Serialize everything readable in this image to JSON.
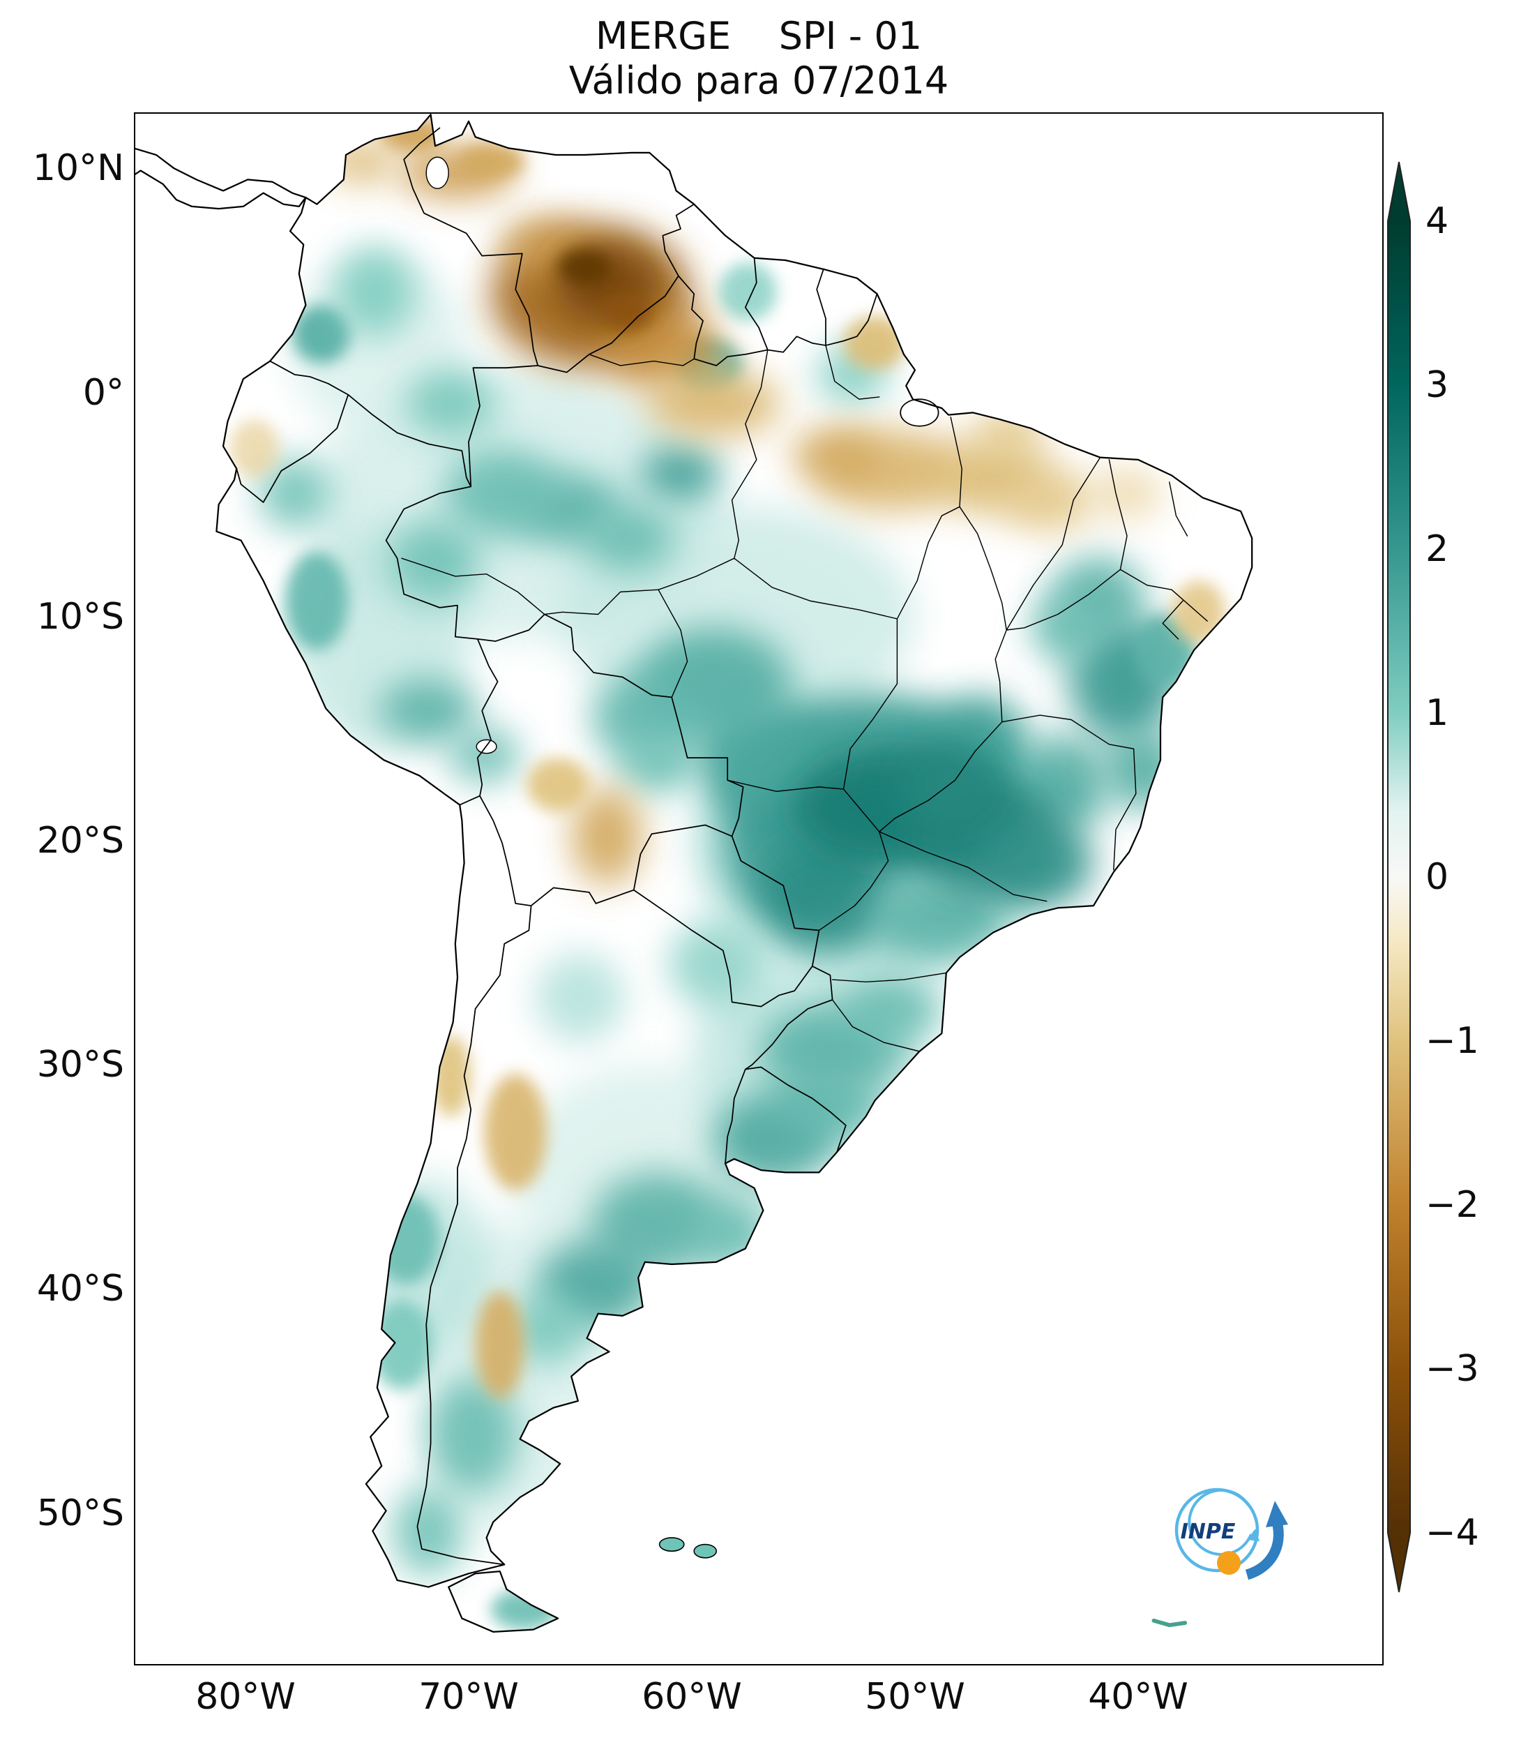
{
  "title": {
    "line1": "MERGE    SPI - 01",
    "line2": "Válido para 07/2014"
  },
  "axes": {
    "y_ticks": [
      {
        "label": "10°N",
        "lat": 10
      },
      {
        "label": "0°",
        "lat": 0
      },
      {
        "label": "10°S",
        "lat": -10
      },
      {
        "label": "20°S",
        "lat": -20
      },
      {
        "label": "30°S",
        "lat": -30
      },
      {
        "label": "40°S",
        "lat": -40
      },
      {
        "label": "50°S",
        "lat": -50
      }
    ],
    "x_ticks": [
      {
        "label": "80°W",
        "lon": -80
      },
      {
        "label": "70°W",
        "lon": -70
      },
      {
        "label": "60°W",
        "lon": -60
      },
      {
        "label": "50°W",
        "lon": -50
      },
      {
        "label": "40°W",
        "lon": -40
      }
    ]
  },
  "colorbar": {
    "ticks": [
      {
        "label": "4",
        "v": 4
      },
      {
        "label": "3",
        "v": 3
      },
      {
        "label": "2",
        "v": 2
      },
      {
        "label": "1",
        "v": 1
      },
      {
        "label": "0",
        "v": 0
      },
      {
        "label": "−1",
        "v": -1
      },
      {
        "label": "−2",
        "v": -2
      },
      {
        "label": "−3",
        "v": -3
      },
      {
        "label": "−4",
        "v": -4
      }
    ],
    "stops": [
      {
        "v": -4,
        "c": "#543005"
      },
      {
        "v": -3,
        "c": "#8c510a"
      },
      {
        "v": -2,
        "c": "#bf812d"
      },
      {
        "v": -1,
        "c": "#dfc27d"
      },
      {
        "v": -0.4,
        "c": "#f6e8c3"
      },
      {
        "v": 0,
        "c": "#f8f8f6"
      },
      {
        "v": 0.4,
        "c": "#e2f3f0"
      },
      {
        "v": 1,
        "c": "#80cdc1"
      },
      {
        "v": 2,
        "c": "#35978f"
      },
      {
        "v": 3,
        "c": "#01665e"
      },
      {
        "v": 4,
        "c": "#003c30"
      }
    ]
  },
  "logo": {
    "text": "INPE",
    "circle_color": "#58b7e6",
    "arrow_color": "#2f7fc1",
    "dot_color": "#f5a01a",
    "text_color": "#123f7a"
  },
  "chart_data": {
    "type": "heatmap",
    "title": "MERGE SPI - 01",
    "valid_for": "07/2014",
    "variable": "SPI (Standardized Precipitation Index), 1-month",
    "region": "South America",
    "projection": "plate carrée",
    "lon_range": [
      -85,
      -29
    ],
    "lat_range": [
      -56.8,
      12.5
    ],
    "value_range": [
      -4,
      4
    ],
    "colormap": "BrBG (brown = dry, teal = wet)",
    "notable_features": [
      "Strong dry anomaly (SPI ≤ −3) over southern Venezuela / upper Rio Negro / Roraima",
      "Strong wet anomaly (SPI ≥ +2) across central-southern Brazil (MT, GO, MG, MS, SP)",
      "Wet anomalies over Uruguay, southern Brazil and central-eastern Argentina",
      "Dry patches over Pará/Maranhão, western Argentina and the Bolivian Chaco",
      "Near-neutral (white) over Paraguay, NW Argentina and much of Patagonia"
    ],
    "regions_columns": [
      "lon",
      "lat",
      "rx_deg",
      "ry_deg",
      "spi"
    ],
    "regions": [
      [
        -68,
        -5,
        9,
        6,
        0.55
      ],
      [
        -58,
        -10,
        8,
        5,
        0.6
      ],
      [
        -74,
        -11,
        4,
        5,
        0.65
      ],
      [
        -62,
        -35,
        6,
        5,
        0.5
      ],
      [
        -68,
        -44,
        4,
        7,
        0.5
      ],
      [
        -72,
        -39,
        3,
        4,
        0.7
      ],
      [
        -55,
        -29.5,
        5,
        4,
        0.7
      ],
      [
        -74,
        2,
        4,
        4,
        0.5
      ],
      [
        -52,
        -20,
        8,
        6,
        0.8
      ],
      [
        -52,
        -17.5,
        7,
        4,
        1.9
      ],
      [
        -55.5,
        -20.5,
        3,
        3,
        1.9
      ],
      [
        -54,
        -22.5,
        3,
        2.5,
        2.2
      ],
      [
        -57,
        -16,
        3,
        2,
        1.7
      ],
      [
        -59,
        -13,
        3.5,
        2.5,
        1.6
      ],
      [
        -62,
        -14.5,
        2.5,
        2,
        1.4
      ],
      [
        -49,
        -23.5,
        3,
        1.8,
        1.5
      ],
      [
        -47,
        -15.5,
        2,
        2,
        1.8
      ],
      [
        -43.5,
        -17.5,
        2.2,
        2.2,
        1.6
      ],
      [
        -40.7,
        -12.8,
        2.4,
        2.8,
        2.0
      ],
      [
        -41.8,
        -9.2,
        2.1,
        1.9,
        1.5
      ],
      [
        -39.8,
        -16.8,
        1.8,
        1.8,
        1.6
      ],
      [
        -43.2,
        -10.5,
        1.6,
        1.5,
        1.3
      ],
      [
        -38.8,
        -11.5,
        1.4,
        1.6,
        1.5
      ],
      [
        -53.8,
        -29.3,
        3.2,
        2,
        1.5
      ],
      [
        -56.3,
        -33.3,
        2.8,
        2,
        1.7
      ],
      [
        -54,
        -31.8,
        2.4,
        1.6,
        1.4
      ],
      [
        -51,
        -27.5,
        2.2,
        1.6,
        1.3
      ],
      [
        -61.5,
        -37,
        3,
        2.2,
        1.5
      ],
      [
        -64.3,
        -39.8,
        2.6,
        2,
        1.7
      ],
      [
        -58.3,
        -37.5,
        1.8,
        1.5,
        1.3
      ],
      [
        -66.5,
        -41.8,
        1.6,
        1.6,
        1.1
      ],
      [
        -69.8,
        -46.5,
        2,
        2.6,
        1.3
      ],
      [
        -71.8,
        -50.8,
        1.6,
        2,
        1.2
      ],
      [
        -67.5,
        -54.3,
        1.5,
        0.9,
        1.3
      ],
      [
        -60.5,
        -3.6,
        1.8,
        1.2,
        1.9
      ],
      [
        -65.5,
        -5.2,
        2.4,
        1.6,
        1.5
      ],
      [
        -62.8,
        -6.5,
        2,
        1.5,
        1.3
      ],
      [
        -68.5,
        -4.5,
        2.6,
        2,
        1.3
      ],
      [
        -71.5,
        -7.5,
        2,
        1.8,
        1.2
      ],
      [
        -76.8,
        -9.3,
        1.4,
        2.2,
        1.4
      ],
      [
        -71.8,
        -14.2,
        2.2,
        1.4,
        1.5
      ],
      [
        -69.3,
        -16.2,
        1.6,
        1.2,
        1.3
      ],
      [
        -77.8,
        -4.5,
        1.6,
        1.6,
        1.2
      ],
      [
        -76.6,
        2.6,
        1.3,
        1.3,
        1.6
      ],
      [
        -74.2,
        4.5,
        1.8,
        2,
        1.0
      ],
      [
        -70.8,
        -0.5,
        2,
        1.5,
        1.1
      ],
      [
        -59.2,
        1.2,
        1.5,
        1.2,
        1.4
      ],
      [
        -57.5,
        4.5,
        1.3,
        1.3,
        0.9
      ],
      [
        -52.8,
        0.8,
        1.6,
        1.3,
        1.0
      ],
      [
        -73,
        -42.5,
        1.4,
        2,
        1.1
      ],
      [
        -72.8,
        -37.8,
        1.5,
        2,
        1.3
      ],
      [
        -58.8,
        -25.5,
        2.2,
        2,
        0.9
      ],
      [
        -61.5,
        -16.5,
        1.8,
        1.4,
        1.2
      ],
      [
        -65,
        -27,
        2,
        2,
        0.8
      ],
      [
        -64.5,
        4.3,
        4.5,
        3.2,
        -2.6
      ],
      [
        -66.5,
        6.5,
        2.0,
        1.2,
        -1.6
      ],
      [
        -61.3,
        2.0,
        2.6,
        1.8,
        -1.8
      ],
      [
        -59,
        -0.5,
        3,
        1.5,
        -1.2
      ],
      [
        -70.5,
        9.8,
        2.6,
        1.1,
        -1.7
      ],
      [
        -72.5,
        11.5,
        1.5,
        0.8,
        -1.5
      ],
      [
        -74.8,
        10.3,
        1.6,
        0.9,
        -1.2
      ],
      [
        -69,
        10.3,
        1.5,
        0.8,
        -1.4
      ],
      [
        -51,
        -3.5,
        3.5,
        1.8,
        -1.2
      ],
      [
        -46.5,
        -3.8,
        2.6,
        1.6,
        -1.1
      ],
      [
        -53.5,
        -2.8,
        2,
        1.2,
        -1.4
      ],
      [
        -44,
        -4.8,
        2,
        1.4,
        -0.9
      ],
      [
        -51.8,
        2.2,
        1.4,
        1.2,
        -1.1
      ],
      [
        -63.8,
        -19.8,
        1.6,
        2.2,
        -1.4
      ],
      [
        -66,
        -17.5,
        1.4,
        1.2,
        -1.0
      ],
      [
        -67.9,
        -33,
        1.4,
        2.6,
        -1.2
      ],
      [
        -68.6,
        -42.5,
        1.1,
        2.4,
        -1.3
      ],
      [
        -70.8,
        -30.5,
        0.9,
        1.8,
        -1.0
      ],
      [
        -37.3,
        -9.8,
        1.2,
        1.4,
        -0.9
      ],
      [
        -40.5,
        -4.5,
        1.6,
        1.1,
        -0.8
      ],
      [
        -45.8,
        -1.8,
        1.6,
        0.9,
        -1.0
      ],
      [
        -79.6,
        -2.5,
        1.1,
        1.3,
        -0.8
      ],
      [
        -63.8,
        4.8,
        2.3,
        1.7,
        -3.4
      ],
      [
        -64.8,
        5.6,
        1.2,
        0.8,
        -3.8
      ],
      [
        -62.9,
        3.6,
        1.1,
        0.8,
        -3.0
      ],
      [
        -51,
        -18.5,
        4.5,
        2.6,
        2.6
      ],
      [
        -46.8,
        -19.8,
        3.2,
        2.6,
        2.4
      ],
      [
        -44.5,
        -21,
        2.5,
        2,
        2.1
      ],
      [
        -48.5,
        -17.5,
        2.2,
        1.8,
        2.3
      ]
    ]
  }
}
